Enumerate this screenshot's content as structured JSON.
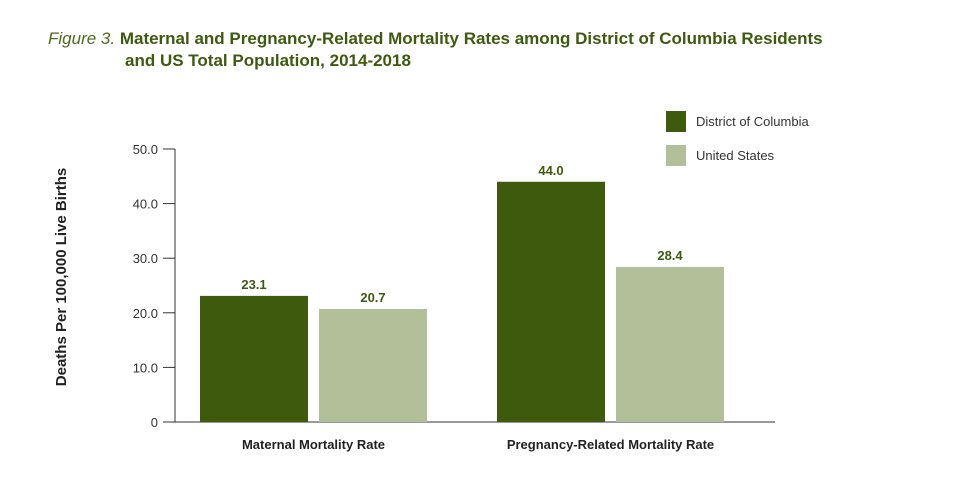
{
  "figure": {
    "label": "Figure 3.",
    "title_line1": "Maternal and Pregnancy-Related Mortality Rates among District of Columbia Residents",
    "title_line2": "and US Total Population, 2014-2018"
  },
  "chart_data": {
    "type": "bar",
    "title": "Maternal and Pregnancy-Related Mortality Rates among District of Columbia Residents and US Total Population, 2014-2018",
    "xlabel": "",
    "ylabel": "Deaths Per 100,000 Live Births",
    "categories": [
      "Maternal Mortality Rate",
      "Pregnancy-Related Mortality Rate"
    ],
    "series": [
      {
        "name": "District of Columbia",
        "color": "#3e5a0c",
        "values": [
          23.1,
          44.0
        ],
        "labels": [
          "23.1",
          "44.0"
        ]
      },
      {
        "name": "United States",
        "color": "#b2bf99",
        "values": [
          20.7,
          28.4
        ],
        "labels": [
          "20.7",
          "28.4"
        ]
      }
    ],
    "ylim": [
      0,
      50
    ],
    "yticks": [
      0,
      10,
      20,
      30,
      40,
      50
    ],
    "ytick_labels": [
      "0",
      "10.0",
      "20.0",
      "30.0",
      "40.0",
      "50.0"
    ],
    "grid": false,
    "legend_position": "top-right"
  }
}
